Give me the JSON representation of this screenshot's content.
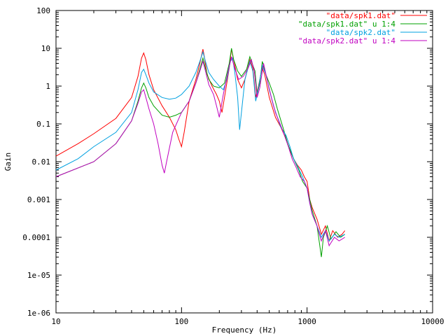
{
  "chart_data": {
    "type": "line",
    "xlabel": "Frequency (Hz)",
    "ylabel": "Gain",
    "x_scale": "log",
    "y_scale": "log",
    "xlim": [
      10,
      10000
    ],
    "ylim": [
      1e-06,
      100
    ],
    "x_ticks": [
      {
        "value": 10,
        "label": "10"
      },
      {
        "value": 100,
        "label": "100"
      },
      {
        "value": 1000,
        "label": "1000"
      },
      {
        "value": 10000,
        "label": "10000"
      }
    ],
    "y_ticks": [
      {
        "value": 100,
        "label": "100"
      },
      {
        "value": 10,
        "label": "10"
      },
      {
        "value": 1,
        "label": "1"
      },
      {
        "value": 0.1,
        "label": "0.1"
      },
      {
        "value": 0.01,
        "label": "0.01"
      },
      {
        "value": 0.001,
        "label": "0.001"
      },
      {
        "value": 0.0001,
        "label": "0.0001"
      },
      {
        "value": 1e-05,
        "label": "1e-05"
      },
      {
        "value": 1e-06,
        "label": "1e-06"
      }
    ],
    "grid": false,
    "legend_position": "top-right",
    "series": [
      {
        "name": "\"data/spk1.dat\"",
        "color": "#ff0000",
        "points": [
          [
            10,
            0.014
          ],
          [
            15,
            0.03
          ],
          [
            20,
            0.055
          ],
          [
            30,
            0.14
          ],
          [
            40,
            0.5
          ],
          [
            45,
            1.8
          ],
          [
            48,
            5.5
          ],
          [
            50,
            7.5
          ],
          [
            52,
            5
          ],
          [
            55,
            2
          ],
          [
            60,
            0.8
          ],
          [
            70,
            0.3
          ],
          [
            80,
            0.15
          ],
          [
            90,
            0.07
          ],
          [
            95,
            0.04
          ],
          [
            100,
            0.025
          ],
          [
            105,
            0.06
          ],
          [
            115,
            0.4
          ],
          [
            130,
            1.5
          ],
          [
            140,
            4
          ],
          [
            148,
            9.5
          ],
          [
            152,
            6
          ],
          [
            160,
            2
          ],
          [
            175,
            1
          ],
          [
            190,
            0.6
          ],
          [
            200,
            0.4
          ],
          [
            210,
            0.2
          ],
          [
            220,
            0.5
          ],
          [
            240,
            3
          ],
          [
            250,
            9.5
          ],
          [
            260,
            5
          ],
          [
            280,
            1.5
          ],
          [
            300,
            0.9
          ],
          [
            320,
            1.5
          ],
          [
            350,
            5
          ],
          [
            370,
            3
          ],
          [
            390,
            0.5
          ],
          [
            410,
            1
          ],
          [
            440,
            3
          ],
          [
            460,
            2
          ],
          [
            500,
            0.5
          ],
          [
            560,
            0.15
          ],
          [
            620,
            0.08
          ],
          [
            680,
            0.04
          ],
          [
            730,
            0.02
          ],
          [
            780,
            0.012
          ],
          [
            840,
            0.008
          ],
          [
            900,
            0.006
          ],
          [
            950,
            0.004
          ],
          [
            1000,
            0.003
          ],
          [
            1050,
            0.001
          ],
          [
            1100,
            0.0006
          ],
          [
            1200,
            0.0003
          ],
          [
            1300,
            0.00012
          ],
          [
            1400,
            0.0002
          ],
          [
            1500,
            8e-05
          ],
          [
            1600,
            0.00015
          ],
          [
            1750,
            0.0001
          ],
          [
            1900,
            0.00012
          ],
          [
            2000,
            0.00015
          ]
        ]
      },
      {
        "name": "\"data/spk1.dat\" u 1:4",
        "color": "#00a000",
        "points": [
          [
            10,
            0.004
          ],
          [
            20,
            0.01
          ],
          [
            30,
            0.03
          ],
          [
            40,
            0.12
          ],
          [
            45,
            0.4
          ],
          [
            48,
            0.9
          ],
          [
            50,
            1.2
          ],
          [
            52,
            0.9
          ],
          [
            55,
            0.5
          ],
          [
            60,
            0.3
          ],
          [
            70,
            0.17
          ],
          [
            80,
            0.15
          ],
          [
            90,
            0.17
          ],
          [
            100,
            0.2
          ],
          [
            115,
            0.4
          ],
          [
            130,
            1.2
          ],
          [
            140,
            2.8
          ],
          [
            148,
            5.5
          ],
          [
            155,
            3
          ],
          [
            165,
            1.5
          ],
          [
            180,
            1
          ],
          [
            200,
            0.9
          ],
          [
            220,
            1.2
          ],
          [
            240,
            4
          ],
          [
            250,
            10
          ],
          [
            260,
            5
          ],
          [
            280,
            2.5
          ],
          [
            300,
            1.8
          ],
          [
            330,
            2.8
          ],
          [
            350,
            6
          ],
          [
            365,
            4
          ],
          [
            385,
            2.5
          ],
          [
            400,
            0.6
          ],
          [
            420,
            1.2
          ],
          [
            440,
            4.5
          ],
          [
            470,
            2
          ],
          [
            500,
            1.2
          ],
          [
            540,
            0.6
          ],
          [
            580,
            0.25
          ],
          [
            620,
            0.12
          ],
          [
            660,
            0.06
          ],
          [
            700,
            0.03
          ],
          [
            760,
            0.015
          ],
          [
            800,
            0.01
          ],
          [
            860,
            0.006
          ],
          [
            920,
            0.003
          ],
          [
            1000,
            0.002
          ],
          [
            1050,
            0.001
          ],
          [
            1100,
            0.0005
          ],
          [
            1200,
            0.0002
          ],
          [
            1300,
            3e-05
          ],
          [
            1350,
            0.0001
          ],
          [
            1450,
            0.0002
          ],
          [
            1550,
            9e-05
          ],
          [
            1700,
            0.00014
          ],
          [
            1850,
            0.0001
          ],
          [
            2000,
            0.00012
          ]
        ]
      },
      {
        "name": "\"data/spk2.dat\"",
        "color": "#00a0e0",
        "points": [
          [
            10,
            0.006
          ],
          [
            15,
            0.012
          ],
          [
            20,
            0.025
          ],
          [
            30,
            0.06
          ],
          [
            40,
            0.2
          ],
          [
            45,
            0.8
          ],
          [
            48,
            2.3
          ],
          [
            50,
            2.8
          ],
          [
            52,
            2
          ],
          [
            55,
            1.2
          ],
          [
            60,
            0.7
          ],
          [
            70,
            0.5
          ],
          [
            80,
            0.45
          ],
          [
            90,
            0.48
          ],
          [
            100,
            0.6
          ],
          [
            115,
            1
          ],
          [
            130,
            2.3
          ],
          [
            140,
            4.5
          ],
          [
            148,
            8
          ],
          [
            155,
            4.5
          ],
          [
            165,
            2.3
          ],
          [
            180,
            1.5
          ],
          [
            200,
            1
          ],
          [
            215,
            0.8
          ],
          [
            230,
            1.5
          ],
          [
            245,
            4.5
          ],
          [
            255,
            5.5
          ],
          [
            265,
            2.5
          ],
          [
            280,
            0.5
          ],
          [
            290,
            0.07
          ],
          [
            300,
            0.2
          ],
          [
            320,
            1.5
          ],
          [
            350,
            4.5
          ],
          [
            370,
            2.5
          ],
          [
            390,
            0.4
          ],
          [
            410,
            0.9
          ],
          [
            440,
            3.5
          ],
          [
            470,
            2
          ],
          [
            500,
            0.8
          ],
          [
            540,
            0.3
          ],
          [
            580,
            0.15
          ],
          [
            620,
            0.08
          ],
          [
            680,
            0.05
          ],
          [
            730,
            0.025
          ],
          [
            780,
            0.012
          ],
          [
            850,
            0.007
          ],
          [
            920,
            0.004
          ],
          [
            1000,
            0.002
          ],
          [
            1050,
            0.0008
          ],
          [
            1100,
            0.0004
          ],
          [
            1200,
            0.0002
          ],
          [
            1300,
            0.0001
          ],
          [
            1400,
            0.00015
          ],
          [
            1500,
            8e-05
          ],
          [
            1650,
            0.00012
          ],
          [
            1800,
            0.0001
          ],
          [
            2000,
            0.00012
          ]
        ]
      },
      {
        "name": "\"data/spk2.dat\" u 1:4",
        "color": "#c000c0",
        "points": [
          [
            10,
            0.004
          ],
          [
            20,
            0.01
          ],
          [
            30,
            0.03
          ],
          [
            40,
            0.12
          ],
          [
            45,
            0.35
          ],
          [
            48,
            0.7
          ],
          [
            50,
            0.8
          ],
          [
            52,
            0.5
          ],
          [
            55,
            0.25
          ],
          [
            60,
            0.1
          ],
          [
            65,
            0.03
          ],
          [
            70,
            0.008
          ],
          [
            73,
            0.005
          ],
          [
            76,
            0.01
          ],
          [
            85,
            0.06
          ],
          [
            100,
            0.2
          ],
          [
            115,
            0.4
          ],
          [
            130,
            1.2
          ],
          [
            140,
            2.5
          ],
          [
            148,
            4.5
          ],
          [
            155,
            2.5
          ],
          [
            165,
            1.1
          ],
          [
            180,
            0.6
          ],
          [
            190,
            0.3
          ],
          [
            200,
            0.15
          ],
          [
            215,
            0.6
          ],
          [
            235,
            2.5
          ],
          [
            250,
            6
          ],
          [
            265,
            3
          ],
          [
            285,
            1.5
          ],
          [
            310,
            1.8
          ],
          [
            340,
            3
          ],
          [
            360,
            5
          ],
          [
            380,
            2.5
          ],
          [
            400,
            0.5
          ],
          [
            420,
            0.9
          ],
          [
            450,
            4
          ],
          [
            480,
            1.5
          ],
          [
            520,
            0.5
          ],
          [
            560,
            0.2
          ],
          [
            610,
            0.1
          ],
          [
            660,
            0.05
          ],
          [
            710,
            0.025
          ],
          [
            760,
            0.012
          ],
          [
            820,
            0.007
          ],
          [
            880,
            0.004
          ],
          [
            950,
            0.003
          ],
          [
            1000,
            0.002
          ],
          [
            1050,
            0.0008
          ],
          [
            1100,
            0.0004
          ],
          [
            1200,
            0.0002
          ],
          [
            1300,
            8e-05
          ],
          [
            1400,
            0.00015
          ],
          [
            1500,
            6e-05
          ],
          [
            1650,
            0.0001
          ],
          [
            1800,
            8e-05
          ],
          [
            2000,
            0.0001
          ]
        ]
      }
    ]
  }
}
